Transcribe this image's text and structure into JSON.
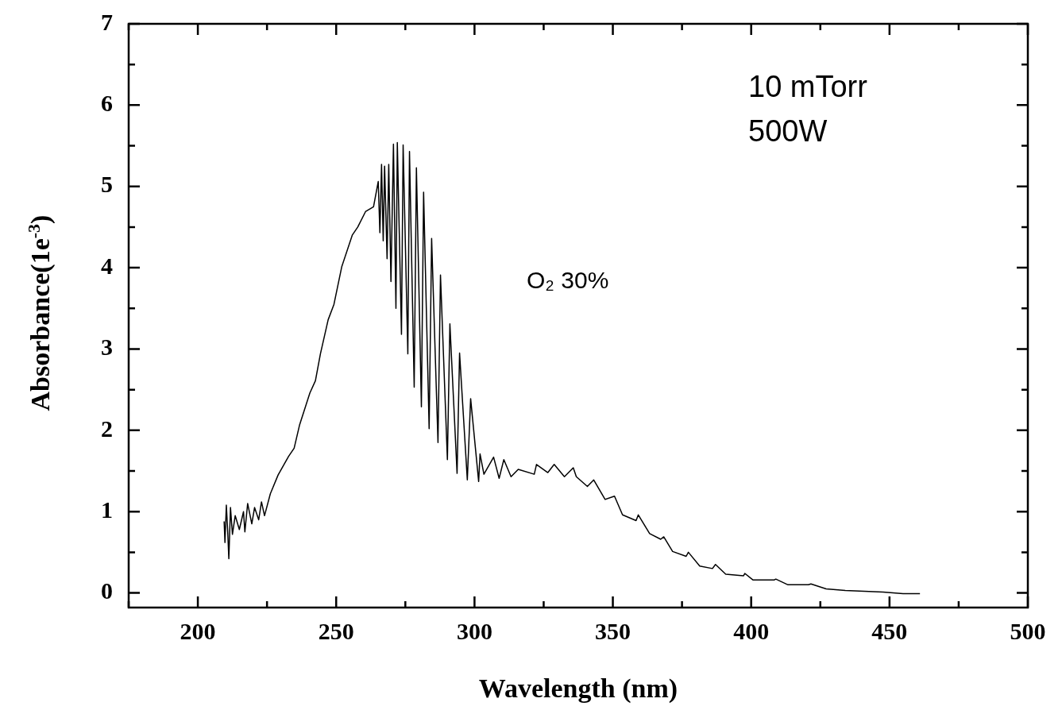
{
  "chart_data": {
    "type": "line",
    "xlabel": "Wavelength (nm)",
    "ylabel": "Absorbance(1e$^{-3}$)",
    "annotations": [
      "10 mTorr",
      "500W",
      "O₂ 30%"
    ],
    "xlim": [
      175,
      500
    ],
    "ylim": [
      -0.18,
      7
    ],
    "xticks": [
      {
        "value": 175,
        "label": null
      },
      200,
      {
        "value": 225,
        "label": null
      },
      250,
      {
        "value": 275,
        "label": null
      },
      300,
      {
        "value": 325,
        "label": null
      },
      350,
      {
        "value": 375,
        "label": null
      },
      400,
      {
        "value": 425,
        "label": null
      },
      450,
      {
        "value": 475,
        "label": null
      },
      500
    ],
    "yticks": [
      0,
      {
        "value": 0.5,
        "label": null
      },
      1,
      {
        "value": 1.5,
        "label": null
      },
      2,
      {
        "value": 2.5,
        "label": null
      },
      3,
      {
        "value": 3.5,
        "label": null
      },
      4,
      {
        "value": 4.5,
        "label": null
      },
      5,
      {
        "value": 5.5,
        "label": null
      },
      6,
      {
        "value": 6.5,
        "label": null
      },
      7
    ],
    "grid": false,
    "legend": false,
    "marker": "none",
    "line_style": "solid",
    "series": [
      {
        "color": "#000000",
        "x": [
          209.5,
          209.8,
          210.3,
          210.8,
          211.2,
          211.8,
          212.5,
          213.5,
          215,
          216.5,
          217,
          218,
          219.5,
          220.5,
          222,
          223,
          224.1,
          226.2,
          229.0,
          232.8,
          234.8,
          236.8,
          240.5,
          242.5,
          244.3,
          247.1,
          249.2,
          252.0,
          255.8,
          257.8,
          260.6,
          263.5,
          265.2,
          265.8,
          266.4,
          267.0,
          267.5,
          268.4,
          269.0,
          269.8,
          270.7,
          271.6,
          272.1,
          273.6,
          274.2,
          275.9,
          276.5,
          278.2,
          279.0,
          280.8,
          281.6,
          283.6,
          284.5,
          286.8,
          287.7,
          290.2,
          291.1,
          293.7,
          294.6,
          297.4,
          298.6,
          301.5,
          302.0,
          303.4,
          306.9,
          308.9,
          310.6,
          313.2,
          315.8,
          321.6,
          322.4,
          326.5,
          328.8,
          332.5,
          335.7,
          336.8,
          340.8,
          343.1,
          347.2,
          350.6,
          353.5,
          358.4,
          359.2,
          363.3,
          367.3,
          368.4,
          371.6,
          376.5,
          377.3,
          381.4,
          386.0,
          387.1,
          390.8,
          397.2,
          397.7,
          400.6,
          408.4,
          408.9,
          413.3,
          420.7,
          421.6,
          427.1,
          434.0,
          440.9,
          447.7,
          454.9,
          461.0
        ],
        "values": [
          0.88,
          0.62,
          1.08,
          0.75,
          0.42,
          1.05,
          0.72,
          0.95,
          0.78,
          1.0,
          0.75,
          1.1,
          0.85,
          1.05,
          0.9,
          1.12,
          0.95,
          1.22,
          1.45,
          1.68,
          1.78,
          2.07,
          2.46,
          2.61,
          2.94,
          3.36,
          3.55,
          4.01,
          4.4,
          4.5,
          4.69,
          4.75,
          5.06,
          4.43,
          5.27,
          4.33,
          5.25,
          4.11,
          5.27,
          3.83,
          5.52,
          3.5,
          5.54,
          3.18,
          5.51,
          2.94,
          5.43,
          2.53,
          5.23,
          2.29,
          4.93,
          2.02,
          4.36,
          1.85,
          3.91,
          1.64,
          3.31,
          1.47,
          2.95,
          1.39,
          2.39,
          1.37,
          1.71,
          1.46,
          1.67,
          1.41,
          1.64,
          1.43,
          1.52,
          1.46,
          1.58,
          1.48,
          1.58,
          1.43,
          1.54,
          1.43,
          1.31,
          1.39,
          1.15,
          1.19,
          0.96,
          0.89,
          0.96,
          0.73,
          0.66,
          0.69,
          0.51,
          0.45,
          0.5,
          0.33,
          0.3,
          0.35,
          0.23,
          0.21,
          0.24,
          0.16,
          0.16,
          0.17,
          0.1,
          0.1,
          0.11,
          0.05,
          0.03,
          0.02,
          0.01,
          -0.01,
          -0.01
        ]
      }
    ]
  }
}
